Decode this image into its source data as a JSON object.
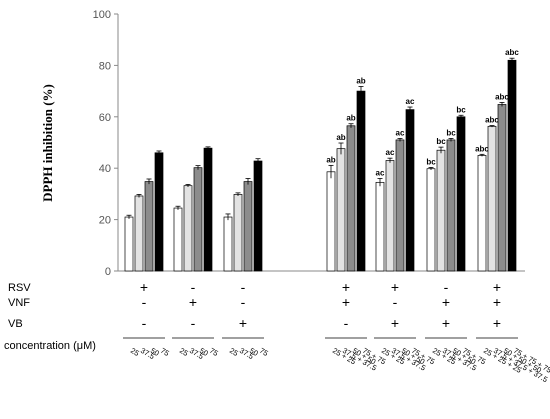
{
  "chart_data": {
    "type": "bar",
    "ylabel": "DPPH inhibition (%)",
    "ylim": [
      0,
      100
    ],
    "yticks": [
      0,
      20,
      40,
      60,
      80,
      100
    ],
    "bar_fills": [
      "#ffffff",
      "#e3e3e3",
      "#8c8c8c",
      "#000000"
    ],
    "groups": [
      {
        "rsv": "+",
        "vnf": "-",
        "vb": "-",
        "bars": [
          {
            "conc": "25",
            "value": 21,
            "err": 0.7,
            "ann": ""
          },
          {
            "conc": "37.5",
            "value": 29.2,
            "err": 0.6,
            "ann": ""
          },
          {
            "conc": "50",
            "value": 34.8,
            "err": 1.0,
            "ann": ""
          },
          {
            "conc": "75",
            "value": 46,
            "err": 0.7,
            "ann": ""
          }
        ]
      },
      {
        "rsv": "-",
        "vnf": "+",
        "vb": "-",
        "bars": [
          {
            "conc": "25",
            "value": 24.5,
            "err": 0.7,
            "ann": ""
          },
          {
            "conc": "37.5",
            "value": 33.2,
            "err": 0.5,
            "ann": ""
          },
          {
            "conc": "50",
            "value": 40.2,
            "err": 0.8,
            "ann": ""
          },
          {
            "conc": "75",
            "value": 47.8,
            "err": 0.5,
            "ann": ""
          }
        ]
      },
      {
        "rsv": "-",
        "vnf": "-",
        "vb": "+",
        "bars": [
          {
            "conc": "25",
            "value": 21,
            "err": 1.2,
            "ann": ""
          },
          {
            "conc": "37.5",
            "value": 29.8,
            "err": 0.6,
            "ann": ""
          },
          {
            "conc": "50",
            "value": 34.8,
            "err": 1.2,
            "ann": ""
          },
          {
            "conc": "75",
            "value": 42.8,
            "err": 0.9,
            "ann": ""
          }
        ]
      },
      {
        "rsv": "+",
        "vnf": "+",
        "vb": "-",
        "bars": [
          {
            "conc": "25 + 25",
            "value": 38.6,
            "err": 2.5,
            "ann": "ab"
          },
          {
            "conc": "37.5 + 37.5",
            "value": 47.6,
            "err": 2.2,
            "ann": "ab"
          },
          {
            "conc": "50 + 50",
            "value": 56.5,
            "err": 0.8,
            "ann": "ab"
          },
          {
            "conc": "75 + 75",
            "value": 70,
            "err": 1.8,
            "ann": "ab"
          }
        ]
      },
      {
        "rsv": "+",
        "vnf": "-",
        "vb": "+",
        "bars": [
          {
            "conc": "25 + 25",
            "value": 34.5,
            "err": 1.5,
            "ann": "ac"
          },
          {
            "conc": "37.5 + 37.5",
            "value": 43,
            "err": 0.9,
            "ann": "ac"
          },
          {
            "conc": "50 + 50",
            "value": 51,
            "err": 0.6,
            "ann": "ac"
          },
          {
            "conc": "75 + 75",
            "value": 62.8,
            "err": 1.0,
            "ann": "ac"
          }
        ]
      },
      {
        "rsv": "-",
        "vnf": "+",
        "vb": "+",
        "bars": [
          {
            "conc": "25 + 25",
            "value": 39.8,
            "err": 0.5,
            "ann": "bc"
          },
          {
            "conc": "37.5 + 37.5",
            "value": 47,
            "err": 1.2,
            "ann": "bc"
          },
          {
            "conc": "50 + 50",
            "value": 51,
            "err": 0.6,
            "ann": "bc"
          },
          {
            "conc": "75 + 75",
            "value": 60,
            "err": 0.6,
            "ann": "bc"
          }
        ]
      },
      {
        "rsv": "+",
        "vnf": "+",
        "vb": "+",
        "bars": [
          {
            "conc": "25 + 25 + 25",
            "value": 45,
            "err": 0.4,
            "ann": "abc"
          },
          {
            "conc": "37.5 + 37.5 + 37.5",
            "value": 56.3,
            "err": 0.3,
            "ann": "abc"
          },
          {
            "conc": "50 + 50 + 50",
            "value": 64.8,
            "err": 0.8,
            "ann": "abc"
          },
          {
            "conc": "75 + 75 + 75",
            "value": 82,
            "err": 0.8,
            "ann": "abc"
          }
        ]
      }
    ],
    "rows": {
      "rsv": "RSV",
      "vnf": "VNF",
      "vb": "VB",
      "concentration": "concentration (μM)"
    }
  }
}
